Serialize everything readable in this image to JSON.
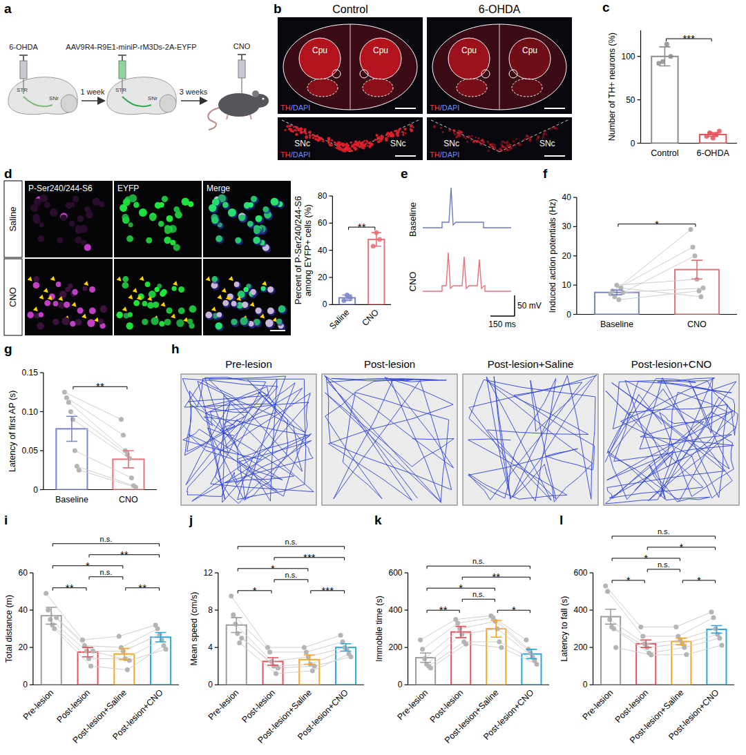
{
  "figure": {
    "panel_letters": [
      "a",
      "b",
      "c",
      "d",
      "e",
      "f",
      "g",
      "h",
      "i",
      "j",
      "k",
      "l"
    ],
    "a": {
      "injections": [
        "6-OHDA",
        "AAV9R4-R9E1-miniP-rM3Ds-2A-EYFP",
        "CNO"
      ],
      "intervals": [
        "1 week",
        "3 weeks"
      ],
      "regions": [
        "STR",
        "SNr"
      ]
    },
    "b": {
      "columns": [
        "Control",
        "6-OHDA"
      ],
      "region_upper": "Cpu",
      "region_lower": "SNc",
      "stain": [
        "TH",
        "/DAPI"
      ]
    },
    "d": {
      "rows": [
        "Saline",
        "CNO"
      ],
      "columns": [
        "P-Ser240/244-S6",
        "EYFP",
        "Merge"
      ]
    },
    "e": {
      "traces": [
        "Baseline",
        "CNO"
      ],
      "scale_y": "50 mV",
      "scale_x": "150 ms"
    },
    "h": {
      "conditions": [
        "Pre-lesion",
        "Post-lesion",
        "Post-lesion+Saline",
        "Post-lesion+CNO"
      ]
    }
  },
  "chart_data": [
    {
      "type": "bar",
      "categories": [
        "Control",
        "6-OHDA"
      ],
      "values": [
        100,
        10
      ],
      "errors": [
        11,
        2
      ],
      "points": [
        [
          92,
          94,
          114,
          100
        ],
        [
          8,
          12,
          6,
          10,
          14
        ]
      ],
      "colors": [
        "#8c8c8c",
        "#e8515a"
      ],
      "marker": "dot",
      "ylabel": "Number of TH+ neurons (%)",
      "ylim": [
        0,
        130
      ],
      "yticks": [
        0,
        50,
        100
      ],
      "annotations": [
        {
          "between": [
            "Control",
            "6-OHDA"
          ],
          "label": "***"
        }
      ]
    },
    {
      "type": "bar",
      "categories": [
        "Saline",
        "CNO"
      ],
      "values": [
        5,
        48
      ],
      "errors": [
        2,
        5
      ],
      "points": [
        [
          3,
          7,
          5
        ],
        [
          43,
          53,
          48
        ]
      ],
      "colors": [
        "#7b83c7",
        "#e8707a"
      ],
      "marker": "dot",
      "ylabel": "Percent of P-Ser240/244-S6 among EYFP+ cells (%)",
      "ylim": [
        0,
        80
      ],
      "yticks": [
        0,
        20,
        40,
        60,
        80
      ],
      "annotations": [
        {
          "between": [
            "Saline",
            "CNO"
          ],
          "label": "**"
        }
      ]
    },
    {
      "type": "bar",
      "categories": [
        "Baseline",
        "CNO"
      ],
      "values": [
        7.5,
        15.3
      ],
      "errors": [
        0.8,
        3.2
      ],
      "points": [
        [
          7,
          8,
          6,
          10,
          5,
          9,
          7.5
        ],
        [
          29,
          23,
          20,
          12,
          8,
          6,
          9
        ]
      ],
      "colors": [
        "#7b83c7",
        "#e8707a"
      ],
      "marker": "dot",
      "line_style": "solid",
      "ylabel": "Induced action potentials (Hz)",
      "ylim": [
        0,
        40
      ],
      "yticks": [
        0,
        10,
        20,
        30,
        40
      ],
      "annotations": [
        {
          "between": [
            "Baseline",
            "CNO"
          ],
          "label": "*"
        }
      ]
    },
    {
      "type": "bar",
      "categories": [
        "Baseline",
        "CNO"
      ],
      "values": [
        0.078,
        0.039
      ],
      "errors": [
        0.016,
        0.011
      ],
      "points": [
        [
          0.125,
          0.118,
          0.112,
          0.1,
          0.09,
          0.05,
          0.03,
          0.025
        ],
        [
          0.09,
          0.07,
          0.05,
          0.045,
          0.04,
          0.015,
          0.005,
          0.003
        ]
      ],
      "colors": [
        "#7b83c7",
        "#e8707a"
      ],
      "marker": "dot",
      "line_style": "solid",
      "ylabel": "Latency of first AP (s)",
      "ylim": [
        0,
        0.15
      ],
      "yticks": [
        0,
        0.05,
        {
          "value": 0.1,
          "label": "0.10"
        },
        0.15
      ],
      "annotations": [
        {
          "between": [
            "Baseline",
            "CNO"
          ],
          "label": "**"
        }
      ]
    },
    {
      "type": "bar",
      "categories": [
        "Pre-lesion",
        "Post-lesion",
        "Post-lesion+Saline",
        "Post-lesion+CNO"
      ],
      "values": [
        37,
        17.5,
        16.5,
        25.5
      ],
      "errors": [
        4.5,
        2.5,
        3,
        2.5
      ],
      "points": [
        [
          49,
          40,
          35,
          32,
          30,
          36
        ],
        [
          24,
          21,
          18,
          14,
          10,
          18
        ],
        [
          26,
          20,
          18,
          14,
          8,
          13
        ],
        [
          32,
          30,
          27,
          24,
          21,
          19
        ]
      ],
      "colors": [
        "#9e9e9e",
        "#e8515a",
        "#f5a623",
        "#2aa7d8"
      ],
      "marker": "dot",
      "line_style": "solid",
      "ylabel": "Total distance (m)",
      "ylim": [
        0,
        60
      ],
      "yticks": [
        0,
        20,
        40,
        60
      ],
      "annotations": [
        {
          "between": [
            "Pre-lesion",
            "Post-lesion+CNO"
          ],
          "label": "n.s."
        },
        {
          "between": [
            "Pre-lesion",
            "Post-lesion+Saline"
          ],
          "label": "*"
        },
        {
          "between": [
            "Pre-lesion",
            "Post-lesion"
          ],
          "label": "**"
        },
        {
          "between": [
            "Post-lesion",
            "Post-lesion+CNO"
          ],
          "label": "**"
        },
        {
          "between": [
            "Post-lesion",
            "Post-lesion+Saline"
          ],
          "label": "n.s."
        },
        {
          "between": [
            "Post-lesion+Saline",
            "Post-lesion+CNO"
          ],
          "label": "**"
        }
      ]
    },
    {
      "type": "bar",
      "categories": [
        "Pre-lesion",
        "Post-lesion",
        "Post-lesion+Saline",
        "Post-lesion+CNO"
      ],
      "values": [
        6.4,
        2.5,
        2.7,
        4.0
      ],
      "errors": [
        0.8,
        0.4,
        0.5,
        0.4
      ],
      "points": [
        [
          9.5,
          7.5,
          6.5,
          5.5,
          4.5,
          5
        ],
        [
          4,
          3.5,
          2.5,
          2,
          1.2,
          1.8
        ],
        [
          4,
          3.5,
          3,
          2.2,
          1.5,
          2
        ],
        [
          5.3,
          4.6,
          4,
          3.8,
          3.3,
          3
        ]
      ],
      "colors": [
        "#9e9e9e",
        "#e8515a",
        "#f5a623",
        "#2aa7d8"
      ],
      "marker": "dot",
      "line_style": "solid",
      "ylabel": "Mean speed (cm/s)",
      "ylim": [
        0,
        12
      ],
      "yticks": [
        0,
        4,
        8,
        12
      ],
      "annotations": [
        {
          "between": [
            "Pre-lesion",
            "Post-lesion+CNO"
          ],
          "label": "n.s."
        },
        {
          "between": [
            "Pre-lesion",
            "Post-lesion+Saline"
          ],
          "label": "*"
        },
        {
          "between": [
            "Pre-lesion",
            "Post-lesion"
          ],
          "label": "*"
        },
        {
          "between": [
            "Post-lesion",
            "Post-lesion+CNO"
          ],
          "label": "***"
        },
        {
          "between": [
            "Post-lesion",
            "Post-lesion+Saline"
          ],
          "label": "n.s."
        },
        {
          "between": [
            "Post-lesion+Saline",
            "Post-lesion+CNO"
          ],
          "label": "***"
        }
      ]
    },
    {
      "type": "bar",
      "categories": [
        "Pre-lesion",
        "Post-lesion",
        "Post-lesion+Saline",
        "Post-lesion+CNO"
      ],
      "values": [
        145,
        283,
        300,
        165
      ],
      "errors": [
        25,
        30,
        45,
        25
      ],
      "points": [
        [
          240,
          190,
          140,
          110,
          100,
          90
        ],
        [
          350,
          330,
          300,
          270,
          230,
          218
        ],
        [
          370,
          360,
          340,
          300,
          230,
          200
        ],
        [
          240,
          190,
          170,
          150,
          130,
          110
        ]
      ],
      "colors": [
        "#9e9e9e",
        "#e8515a",
        "#f5a623",
        "#2aa7d8"
      ],
      "marker": "dot",
      "line_style": "solid",
      "ylabel": "Immobile time (s)",
      "ylim": [
        0,
        600
      ],
      "yticks": [
        0,
        200,
        400,
        600
      ],
      "annotations": [
        {
          "between": [
            "Pre-lesion",
            "Post-lesion+CNO"
          ],
          "label": "n.s."
        },
        {
          "between": [
            "Post-lesion",
            "Post-lesion+CNO"
          ],
          "label": "**"
        },
        {
          "between": [
            "Pre-lesion",
            "Post-lesion+Saline"
          ],
          "label": "*"
        },
        {
          "between": [
            "Pre-lesion",
            "Post-lesion"
          ],
          "label": "**"
        },
        {
          "between": [
            "Post-lesion",
            "Post-lesion+Saline"
          ],
          "label": "n.s."
        },
        {
          "between": [
            "Post-lesion+Saline",
            "Post-lesion+CNO"
          ],
          "label": "*"
        }
      ]
    },
    {
      "type": "bar",
      "categories": [
        "Pre-lesion",
        "Post-lesion",
        "Post-lesion+Saline",
        "Post-lesion+CNO"
      ],
      "values": [
        365,
        220,
        232,
        297
      ],
      "errors": [
        40,
        20,
        18,
        20
      ],
      "points": [
        [
          530,
          500,
          350,
          310,
          300,
          200
        ],
        [
          310,
          260,
          220,
          200,
          170,
          160
        ],
        [
          310,
          260,
          240,
          220,
          200,
          162
        ],
        [
          390,
          360,
          300,
          270,
          250,
          212
        ]
      ],
      "colors": [
        "#9e9e9e",
        "#e8515a",
        "#f5a623",
        "#2aa7d8"
      ],
      "marker": "dot",
      "line_style": "solid",
      "ylabel": "Latency to fall (s)",
      "ylim": [
        0,
        600
      ],
      "yticks": [
        0,
        200,
        400,
        600
      ],
      "annotations": [
        {
          "between": [
            "Pre-lesion",
            "Post-lesion+CNO"
          ],
          "label": "n.s."
        },
        {
          "between": [
            "Pre-lesion",
            "Post-lesion+Saline"
          ],
          "label": "*"
        },
        {
          "between": [
            "Pre-lesion",
            "Post-lesion"
          ],
          "label": "*"
        },
        {
          "between": [
            "Post-lesion",
            "Post-lesion+CNO"
          ],
          "label": "*"
        },
        {
          "between": [
            "Post-lesion",
            "Post-lesion+Saline"
          ],
          "label": "n.s."
        },
        {
          "between": [
            "Post-lesion+Saline",
            "Post-lesion+CNO"
          ],
          "label": "*"
        }
      ]
    }
  ]
}
